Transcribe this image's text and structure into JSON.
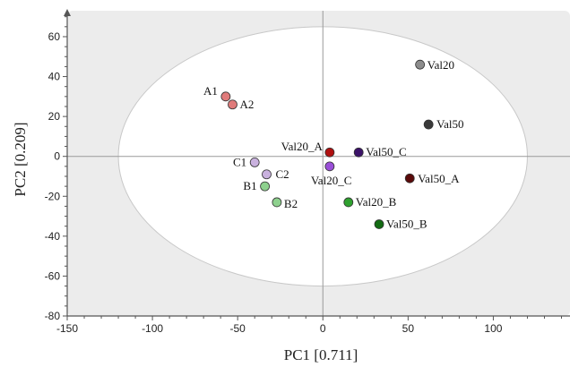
{
  "chart_data": {
    "type": "scatter",
    "title": "",
    "xlabel": "PC1 [0.711]",
    "ylabel": "PC2 [0.209]",
    "xlim": [
      -150,
      145
    ],
    "ylim": [
      -80,
      73
    ],
    "xticks": [
      -150,
      -100,
      -50,
      0,
      50,
      100
    ],
    "yticks": [
      -80,
      -60,
      -40,
      -20,
      0,
      20,
      40,
      60
    ],
    "xtick_labels": [
      "-150",
      "-100",
      "-50",
      "0",
      "50",
      "100"
    ],
    "ytick_labels": [
      "-80",
      "-60",
      "-40",
      "-20",
      "0",
      "20",
      "40",
      "60"
    ],
    "grid": false,
    "plot_background": "#ececec",
    "confidence_ellipse": {
      "center": [
        0,
        0
      ],
      "semi_axis_x": 120,
      "semi_axis_y": 65,
      "fill": "#ffffff"
    },
    "points": [
      {
        "label": "A1",
        "x": -57,
        "y": 30,
        "color": "#e07b7b"
      },
      {
        "label": "A2",
        "x": -53,
        "y": 26,
        "color": "#e07b7b"
      },
      {
        "label": "C1",
        "x": -40,
        "y": -3,
        "color": "#c9b1de"
      },
      {
        "label": "C2",
        "x": -33,
        "y": -9,
        "color": "#c9b1de"
      },
      {
        "label": "B1",
        "x": -34,
        "y": -15,
        "color": "#8ed18e"
      },
      {
        "label": "B2",
        "x": -27,
        "y": -23,
        "color": "#8ed18e"
      },
      {
        "label": "Val20_A",
        "x": 4,
        "y": 2,
        "color": "#b01010"
      },
      {
        "label": "Val20_C",
        "x": 4,
        "y": -5,
        "color": "#9a4fd8"
      },
      {
        "label": "Val50_C",
        "x": 21,
        "y": 2,
        "color": "#3b1268"
      },
      {
        "label": "Val20",
        "x": 57,
        "y": 46,
        "color": "#8c8c8c"
      },
      {
        "label": "Val50",
        "x": 62,
        "y": 16,
        "color": "#3a3a3a"
      },
      {
        "label": "Val50_A",
        "x": 51,
        "y": -11,
        "color": "#5a0a0a"
      },
      {
        "label": "Val20_B",
        "x": 15,
        "y": -23,
        "color": "#2fa12f"
      },
      {
        "label": "Val50_B",
        "x": 33,
        "y": -34,
        "color": "#136b13"
      }
    ]
  }
}
